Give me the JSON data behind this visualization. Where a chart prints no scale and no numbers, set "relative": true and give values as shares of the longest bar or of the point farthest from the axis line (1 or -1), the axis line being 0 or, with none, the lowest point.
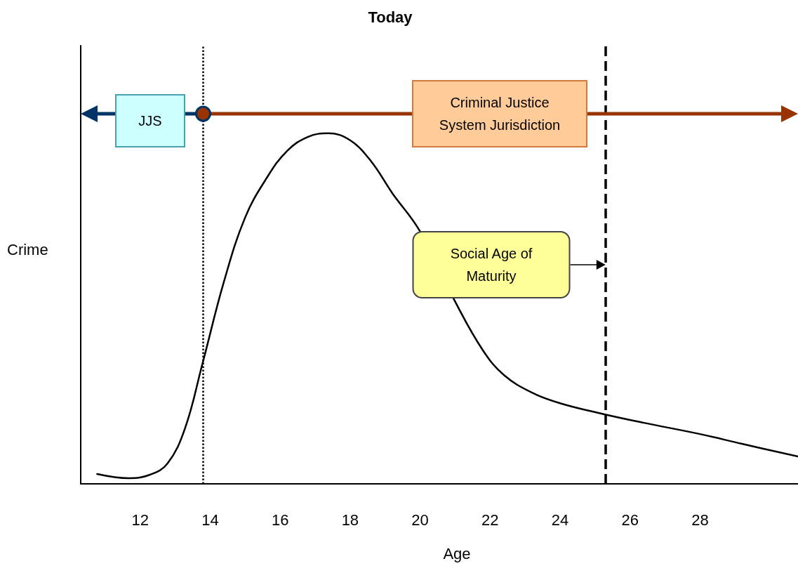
{
  "chart_data": {
    "type": "line",
    "title": "Today",
    "xlabel": "Age",
    "ylabel": "Crime",
    "relative": true,
    "x": [
      10.77,
      11.68,
      12.28,
      12.78,
      13.28,
      13.77,
      14.4,
      15.0,
      15.6,
      16.2,
      16.8,
      17.37,
      18.0,
      18.6,
      19.2,
      20.0,
      21.0,
      21.8,
      22.4,
      23.2,
      24.0,
      25.2,
      26.4,
      28.0,
      29.2,
      30.8
    ],
    "series": [
      {
        "color": "#000000",
        "values": [
          0.028,
          0.016,
          0.026,
          0.058,
          0.158,
          0.339,
          0.579,
          0.76,
          0.87,
          0.95,
          0.99,
          1,
          0.98,
          0.92,
          0.83,
          0.72,
          0.52,
          0.38,
          0.31,
          0.26,
          0.23,
          0.2,
          0.174,
          0.142,
          0.114,
          0.078
        ]
      }
    ],
    "xlim": [
      10.3,
      30.8
    ],
    "xticks": [
      12,
      14,
      16,
      18,
      20,
      22,
      24,
      26,
      28
    ],
    "ref_lines": [
      {
        "axis": "x",
        "value": 13.8,
        "line_style": "dotted",
        "color": "#000000"
      },
      {
        "axis": "x",
        "value": 25.3,
        "line_style": "dashed",
        "color": "#000000"
      }
    ],
    "annotations": [
      "JJS",
      "Criminal Justice System Jurisdiction",
      "Social Age of Maturity"
    ],
    "grid": false,
    "marker": "none",
    "line_style": "solid"
  }
}
